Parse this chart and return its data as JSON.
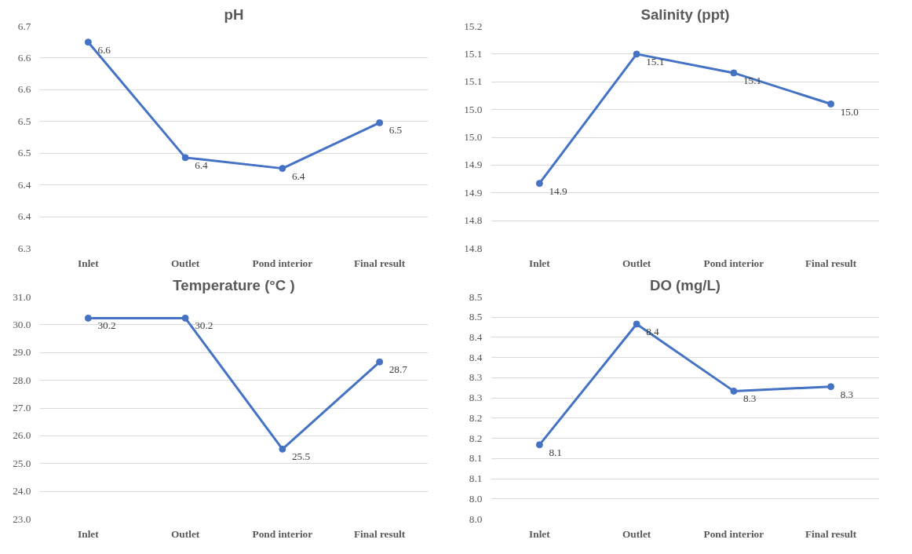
{
  "chart_data": [
    {
      "type": "line",
      "title": "pH",
      "categories": [
        "Inlet",
        "Outlet",
        "Pond interior",
        "Final result"
      ],
      "values": [
        6.625,
        6.443,
        6.426,
        6.498
      ],
      "value_labels": [
        "6.6",
        "6.4",
        "6.4",
        "6.5"
      ],
      "color": "#4472c4",
      "marker": "circle",
      "grid": "y",
      "ylim": [
        6.3,
        6.65
      ],
      "yticks": [
        {
          "value": 6.3,
          "label": "6.3"
        },
        {
          "value": 6.35,
          "label": "6.4"
        },
        {
          "value": 6.4,
          "label": "6.4"
        },
        {
          "value": 6.45,
          "label": "6.5"
        },
        {
          "value": 6.5,
          "label": "6.5"
        },
        {
          "value": 6.55,
          "label": "6.6"
        },
        {
          "value": 6.6,
          "label": "6.6"
        },
        {
          "value": 6.65,
          "label": "6.7"
        }
      ]
    },
    {
      "type": "line",
      "title": "Salinity (ppt)",
      "categories": [
        "Inlet",
        "Outlet",
        "Pond interior",
        "Final result"
      ],
      "values": [
        14.867,
        15.1,
        15.066,
        15.01
      ],
      "value_labels": [
        "14.9",
        "15.1",
        "15.1",
        "15.0"
      ],
      "color": "#4472c4",
      "marker": "circle",
      "grid": "y",
      "ylim": [
        14.75,
        15.15
      ],
      "yticks": [
        {
          "value": 14.75,
          "label": "14.8"
        },
        {
          "value": 14.8,
          "label": "14.8"
        },
        {
          "value": 14.85,
          "label": "14.9"
        },
        {
          "value": 14.9,
          "label": "14.9"
        },
        {
          "value": 14.95,
          "label": "15.0"
        },
        {
          "value": 15.0,
          "label": "15.0"
        },
        {
          "value": 15.05,
          "label": "15.1"
        },
        {
          "value": 15.1,
          "label": "15.1"
        },
        {
          "value": 15.15,
          "label": "15.2"
        }
      ]
    },
    {
      "type": "line",
      "title": "Temperature (°C )",
      "categories": [
        "Inlet",
        "Outlet",
        "Pond interior",
        "Final result"
      ],
      "values": [
        30.24,
        30.24,
        25.52,
        28.66
      ],
      "value_labels": [
        "30.2",
        "30.2",
        "25.5",
        "28.7"
      ],
      "color": "#4472c4",
      "marker": "circle",
      "grid": "y",
      "ylim": [
        23,
        31
      ],
      "yticks": [
        {
          "value": 23,
          "label": "23.0"
        },
        {
          "value": 24,
          "label": "24.0"
        },
        {
          "value": 25,
          "label": "25.0"
        },
        {
          "value": 26,
          "label": "26.0"
        },
        {
          "value": 27,
          "label": "27.0"
        },
        {
          "value": 28,
          "label": "28.0"
        },
        {
          "value": 29,
          "label": "29.0"
        },
        {
          "value": 30,
          "label": "30.0"
        },
        {
          "value": 31,
          "label": "31.0"
        }
      ]
    },
    {
      "type": "line",
      "title": "DO (mg/L)",
      "categories": [
        "Inlet",
        "Outlet",
        "Pond interior",
        "Final result"
      ],
      "values": [
        8.134,
        8.433,
        8.267,
        8.278
      ],
      "value_labels": [
        "8.1",
        "8.4",
        "8.3",
        "8.3"
      ],
      "color": "#4472c4",
      "marker": "circle",
      "grid": "y",
      "ylim": [
        7.95,
        8.5
      ],
      "yticks": [
        {
          "value": 7.95,
          "label": "8.0"
        },
        {
          "value": 8.0,
          "label": "8.0"
        },
        {
          "value": 8.05,
          "label": "8.1"
        },
        {
          "value": 8.1,
          "label": "8.1"
        },
        {
          "value": 8.15,
          "label": "8.2"
        },
        {
          "value": 8.2,
          "label": "8.2"
        },
        {
          "value": 8.25,
          "label": "8.3"
        },
        {
          "value": 8.3,
          "label": "8.3"
        },
        {
          "value": 8.35,
          "label": "8.4"
        },
        {
          "value": 8.4,
          "label": "8.4"
        },
        {
          "value": 8.45,
          "label": "8.5"
        },
        {
          "value": 8.5,
          "label": "8.5"
        }
      ]
    }
  ]
}
